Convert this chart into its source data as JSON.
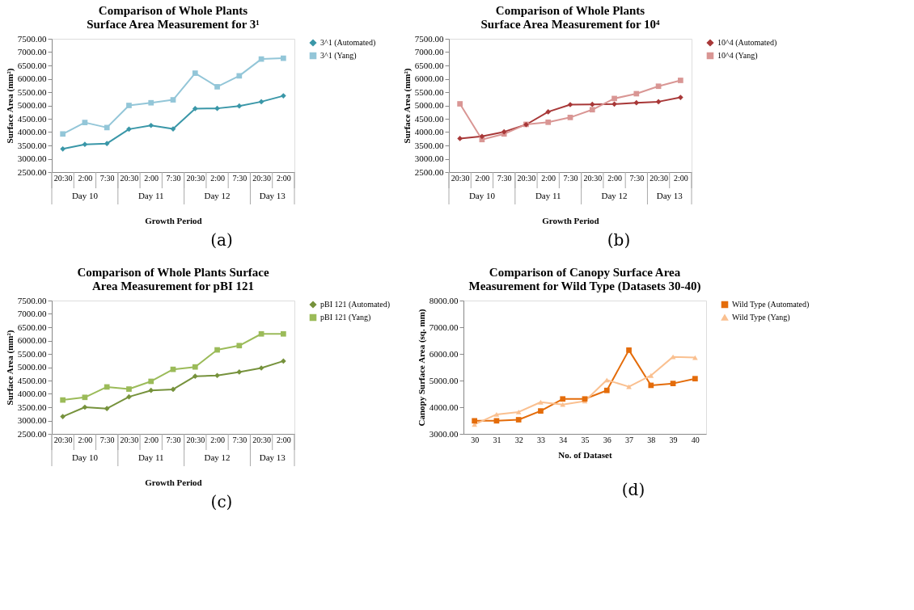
{
  "chart_data": [
    {
      "type": "line",
      "title": "Comparison of Whole Plants Surface Area Measurement for 3¹",
      "xlabel": "Growth Period",
      "ylabel": "Surface Area (mm²)",
      "categories": [
        "20:30",
        "2:00",
        "7:30",
        "20:30",
        "2:00",
        "7:30",
        "20:30",
        "2:00",
        "7:30",
        "20:30",
        "2:00"
      ],
      "series": [
        {
          "name": "3^1 (Automated)",
          "color": "#3a97a8",
          "marker": "diamond",
          "values": [
            3370,
            3540,
            3570,
            4110,
            4250,
            4120,
            4880,
            4890,
            4980,
            5140,
            5360
          ]
        },
        {
          "name": "3^1 (Yang)",
          "color": "#93c6d8",
          "marker": "square",
          "values": [
            3930,
            4360,
            4170,
            5000,
            5100,
            5210,
            6210,
            5700,
            6110,
            6740,
            6770
          ]
        }
      ],
      "ylim": [
        2500,
        7500
      ],
      "yticks": [
        {
          "value": 2500,
          "label": "2500.00"
        },
        {
          "value": 3000,
          "label": "3000.00"
        },
        {
          "value": 3500,
          "label": "3500.00"
        },
        {
          "value": 4000,
          "label": "4000.00"
        },
        {
          "value": 4500,
          "label": "4500.00"
        },
        {
          "value": 5000,
          "label": "5000.00"
        },
        {
          "value": 5500,
          "label": "5500.00"
        },
        {
          "value": 6000,
          "label": "6000.00"
        },
        {
          "value": 6500,
          "label": "6500.00"
        },
        {
          "value": 7000,
          "label": "7000.00"
        },
        {
          "value": 7500,
          "label": "7500.00"
        }
      ],
      "legend": "right",
      "grid": false,
      "annotations": [
        "Day 10",
        "Day 11",
        "Day 12",
        "Day 13",
        "(a)"
      ]
    },
    {
      "type": "line",
      "title": "Comparison of Whole Plants Surface Area Measurement for 10⁴",
      "xlabel": "Growth Period",
      "ylabel": "Surface Area (mm²)",
      "categories": [
        "20:30",
        "2:00",
        "7:30",
        "20:30",
        "2:00",
        "7:30",
        "20:30",
        "2:00",
        "7:30",
        "20:30",
        "2:00"
      ],
      "series": [
        {
          "name": "10^4 (Automated)",
          "color": "#a83838",
          "marker": "diamond",
          "values": [
            3760,
            3840,
            4010,
            4280,
            4760,
            5030,
            5040,
            5050,
            5100,
            5140,
            5300
          ]
        },
        {
          "name": "10^4 (Yang)",
          "color": "#d99694",
          "marker": "square",
          "values": [
            5060,
            3720,
            3930,
            4290,
            4370,
            4550,
            4840,
            5260,
            5440,
            5720,
            5940
          ]
        }
      ],
      "ylim": [
        2500,
        7500
      ],
      "yticks": [
        {
          "value": 2500,
          "label": "2500.00"
        },
        {
          "value": 3000,
          "label": "3000.00"
        },
        {
          "value": 3500,
          "label": "3500.00"
        },
        {
          "value": 4000,
          "label": "4000.00"
        },
        {
          "value": 4500,
          "label": "4500.00"
        },
        {
          "value": 5000,
          "label": "5000.00"
        },
        {
          "value": 5500,
          "label": "5500.00"
        },
        {
          "value": 6000,
          "label": "6000.00"
        },
        {
          "value": 6500,
          "label": "6500.00"
        },
        {
          "value": 7000,
          "label": "7000.00"
        },
        {
          "value": 7500,
          "label": "7500.00"
        }
      ],
      "legend": "right",
      "grid": false,
      "annotations": [
        "Day 10",
        "Day 11",
        "Day 12",
        "Day 13",
        "(b)"
      ]
    },
    {
      "type": "line",
      "title": "Comparison of Whole Plants Surface Area Measurement for pBI 121",
      "xlabel": "Growth Period",
      "ylabel": "Surface Area (mm²)",
      "categories": [
        "20:30",
        "2:00",
        "7:30",
        "20:30",
        "2:00",
        "7:30",
        "20:30",
        "2:00",
        "7:30",
        "20:30",
        "2:00"
      ],
      "series": [
        {
          "name": "pBI 121 (Automated)",
          "color": "#76923c",
          "marker": "diamond",
          "values": [
            3150,
            3500,
            3450,
            3890,
            4130,
            4170,
            4660,
            4690,
            4820,
            4970,
            5230
          ]
        },
        {
          "name": "pBI 121 (Yang)",
          "color": "#9bbb59",
          "marker": "square",
          "values": [
            3770,
            3870,
            4260,
            4180,
            4470,
            4920,
            5010,
            5650,
            5810,
            6250,
            6250
          ]
        }
      ],
      "ylim": [
        2500,
        7500
      ],
      "yticks": [
        {
          "value": 2500,
          "label": "2500.00"
        },
        {
          "value": 3000,
          "label": "3000.00"
        },
        {
          "value": 3500,
          "label": "3500.00"
        },
        {
          "value": 4000,
          "label": "4000.00"
        },
        {
          "value": 4500,
          "label": "4500.00"
        },
        {
          "value": 5000,
          "label": "5000.00"
        },
        {
          "value": 5500,
          "label": "5500.00"
        },
        {
          "value": 6000,
          "label": "6000.00"
        },
        {
          "value": 6500,
          "label": "6500.00"
        },
        {
          "value": 7000,
          "label": "7000.00"
        },
        {
          "value": 7500,
          "label": "7500.00"
        }
      ],
      "legend": "right",
      "grid": false,
      "annotations": [
        "Day 10",
        "Day 11",
        "Day 12",
        "Day 13",
        "(c)"
      ]
    },
    {
      "type": "line",
      "title": "Comparison of Canopy Surface Area Measurement for Wild Type (Datasets 30-40)",
      "xlabel": "No. of Dataset",
      "ylabel": "Canopy Surface Area (sq. mm)",
      "categories": [
        "30",
        "31",
        "32",
        "33",
        "34",
        "35",
        "36",
        "37",
        "38",
        "39",
        "40"
      ],
      "series": [
        {
          "name": "Wild Type (Automated)",
          "color": "#e46c0a",
          "marker": "square",
          "values": [
            3490,
            3490,
            3530,
            3860,
            4310,
            4310,
            4630,
            6140,
            4820,
            4890,
            5070
          ]
        },
        {
          "name": "Wild Type (Yang)",
          "color": "#fac090",
          "marker": "triangle",
          "values": [
            3350,
            3730,
            3820,
            4190,
            4100,
            4230,
            5020,
            4770,
            5190,
            5890,
            5860
          ]
        }
      ],
      "ylim": [
        3000,
        8000
      ],
      "yticks": [
        {
          "value": 3000,
          "label": "3000.00"
        },
        {
          "value": 4000,
          "label": "4000.00"
        },
        {
          "value": 5000,
          "label": "5000.00"
        },
        {
          "value": 6000,
          "label": "6000.00"
        },
        {
          "value": 7000,
          "label": "7000.00"
        },
        {
          "value": 8000,
          "label": "8000.00"
        }
      ],
      "legend": "right",
      "grid": false,
      "annotations": [
        "(d)"
      ]
    }
  ]
}
